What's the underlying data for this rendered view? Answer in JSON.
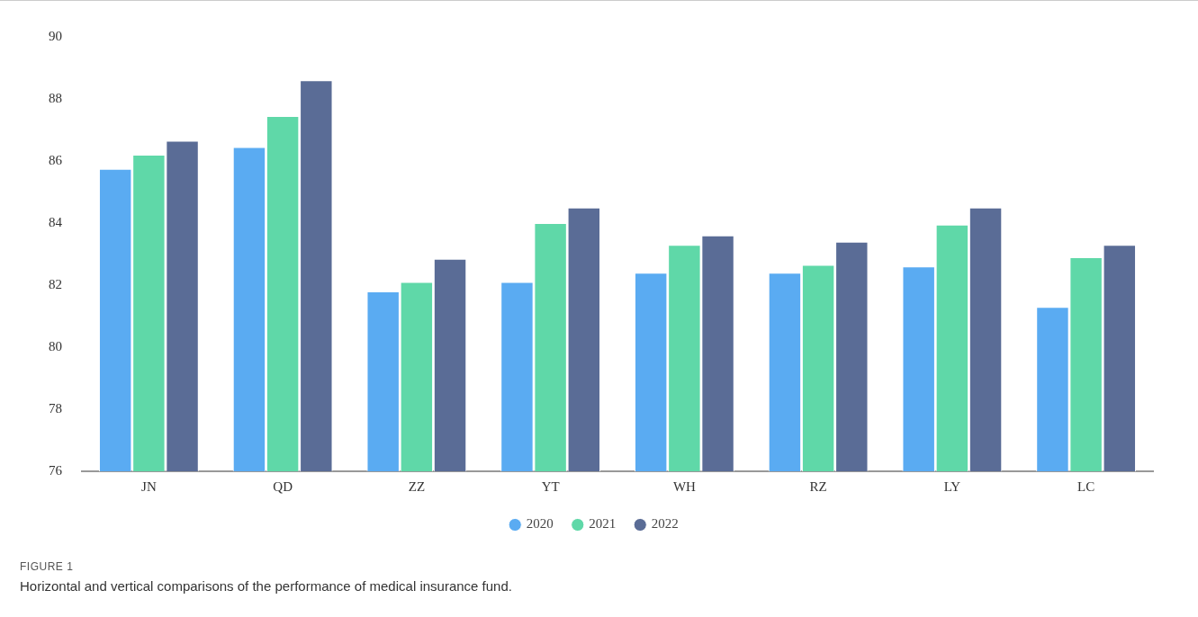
{
  "chart_data": {
    "type": "bar",
    "categories": [
      "JN",
      "QD",
      "ZZ",
      "YT",
      "WH",
      "RZ",
      "LY",
      "LC"
    ],
    "series": [
      {
        "name": "2020",
        "color": "#5aabf2",
        "values": [
          85.75,
          86.45,
          81.8,
          82.1,
          82.4,
          82.4,
          82.6,
          81.3
        ]
      },
      {
        "name": "2021",
        "color": "#5fd8a8",
        "values": [
          86.2,
          87.45,
          82.1,
          84.0,
          83.3,
          82.65,
          83.95,
          82.9
        ]
      },
      {
        "name": "2022",
        "color": "#5a6c96",
        "values": [
          86.65,
          88.6,
          82.85,
          84.5,
          83.6,
          83.4,
          84.5,
          83.3
        ]
      }
    ],
    "ylim": [
      76,
      90
    ],
    "yticks": [
      76,
      78,
      80,
      82,
      84,
      86,
      88,
      90
    ],
    "grid": false,
    "legend": "bottom",
    "annotations": [
      "FIGURE 1",
      "Horizontal and vertical comparisons of the performance of medical insurance fund."
    ]
  }
}
